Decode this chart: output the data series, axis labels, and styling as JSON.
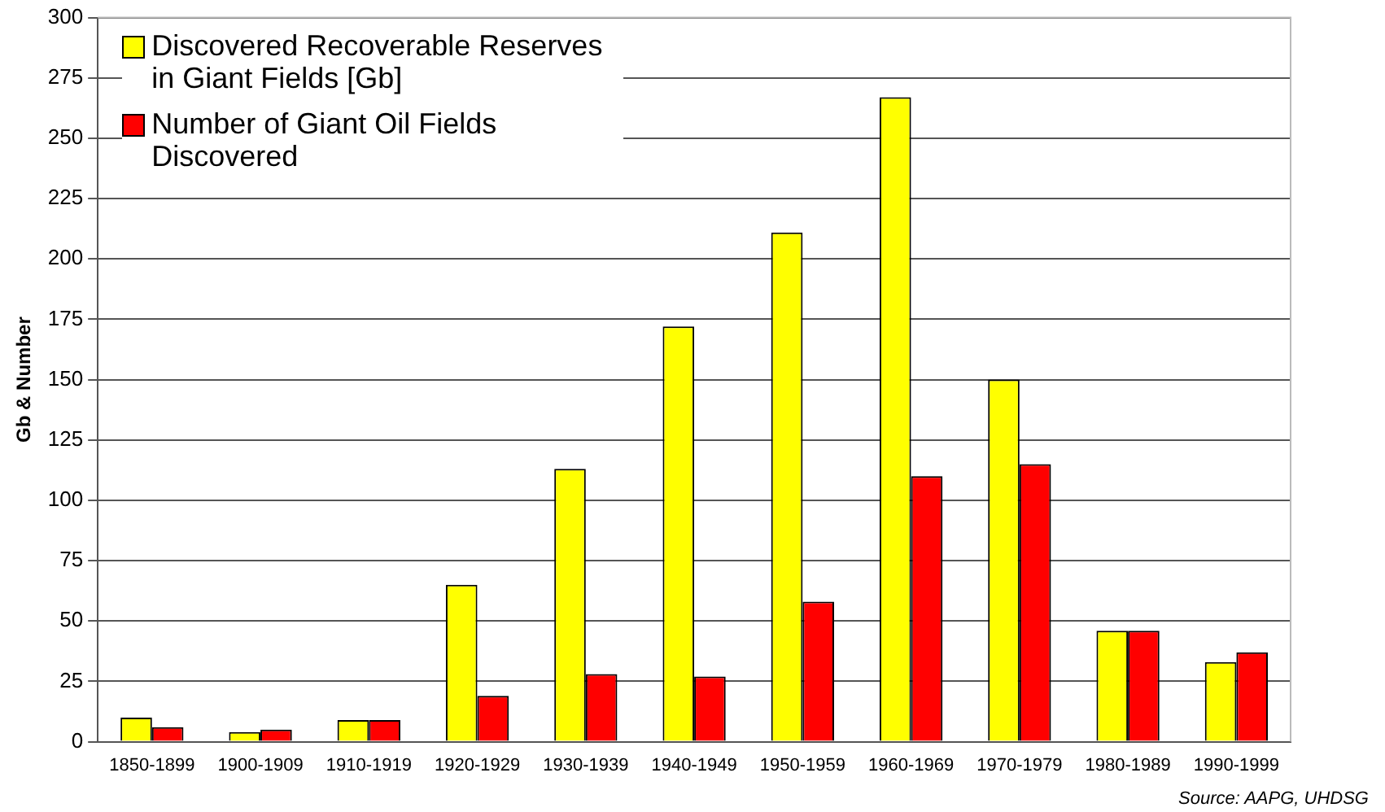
{
  "chart_data": {
    "type": "bar",
    "ylabel": "Gb & Number",
    "categories": [
      "1850-1899",
      "1900-1909",
      "1910-1919",
      "1920-1929",
      "1930-1939",
      "1940-1949",
      "1950-1959",
      "1960-1969",
      "1970-1979",
      "1980-1989",
      "1990-1999"
    ],
    "series": [
      {
        "name": "Discovered Recoverable Reserves in Giant Fields [Gb]",
        "color": "#ffff00",
        "values": [
          10,
          4,
          9,
          65,
          113,
          172,
          211,
          267,
          150,
          46,
          33
        ]
      },
      {
        "name": "Number of Giant Oil Fields Discovered",
        "color": "#ff0000",
        "values": [
          6,
          5,
          9,
          19,
          28,
          27,
          58,
          110,
          115,
          46,
          37
        ]
      }
    ],
    "ylim": [
      0,
      300
    ],
    "yticks": [
      0,
      25,
      50,
      75,
      100,
      125,
      150,
      175,
      200,
      225,
      250,
      275,
      300
    ],
    "grid": "y",
    "legend": "top left",
    "annotations": [
      "Source: AAPG, UHDSG"
    ]
  }
}
